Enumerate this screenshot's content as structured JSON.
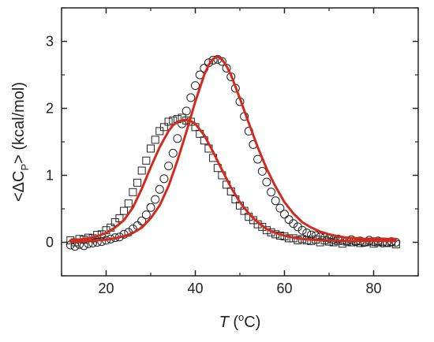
{
  "chart_data": {
    "type": "scatter",
    "title": "",
    "xlabel": {
      "symbol": "T",
      "open": " (",
      "sup": "o",
      "unit": "C)"
    },
    "ylabel": {
      "pre": "<ΔC",
      "sub": "P",
      "post": "> (kcal/mol)"
    },
    "xlim": [
      10,
      90
    ],
    "ylim": [
      -0.5,
      3.5
    ],
    "xticks": [
      20,
      40,
      60,
      80
    ],
    "yticks": [
      0,
      1,
      2,
      3
    ],
    "grid": false,
    "series": [
      {
        "marker": "square",
        "color": "#222222",
        "x": [
          12,
          13,
          14,
          15,
          16,
          17,
          18,
          19,
          20,
          21,
          22,
          23,
          24,
          25,
          26,
          27,
          28,
          29,
          30,
          31,
          32,
          33,
          34,
          35,
          36,
          37,
          38,
          39,
          40,
          41,
          42,
          43,
          44,
          45,
          46,
          47,
          48,
          49,
          50,
          51,
          52,
          53,
          54,
          55,
          56,
          57,
          58,
          59,
          60,
          61,
          62,
          63,
          64,
          65,
          66,
          67,
          68,
          69,
          70,
          71,
          72,
          73,
          74,
          75,
          76,
          77,
          78,
          79,
          80,
          81,
          82,
          83,
          84,
          85
        ],
        "y": [
          0.03,
          0.0,
          0.05,
          0.04,
          0.07,
          0.06,
          0.11,
          0.12,
          0.18,
          0.22,
          0.3,
          0.36,
          0.47,
          0.58,
          0.75,
          0.89,
          1.07,
          1.22,
          1.4,
          1.53,
          1.66,
          1.72,
          1.8,
          1.82,
          1.84,
          1.86,
          1.82,
          1.8,
          1.72,
          1.62,
          1.52,
          1.4,
          1.26,
          1.11,
          1.0,
          0.86,
          0.76,
          0.64,
          0.55,
          0.47,
          0.38,
          0.33,
          0.27,
          0.23,
          0.18,
          0.15,
          0.12,
          0.1,
          0.09,
          0.06,
          0.06,
          0.03,
          0.05,
          0.03,
          0.02,
          0.04,
          0.0,
          0.03,
          0.01,
          0.0,
          0.02,
          -0.02,
          0.01,
          0.0,
          0.02,
          -0.01,
          0.0,
          0.01,
          -0.02,
          0.0,
          0.01,
          -0.01,
          0.0,
          -0.03
        ]
      },
      {
        "marker": "circle",
        "color": "#222222",
        "x": [
          12,
          13,
          14,
          15,
          16,
          17,
          18,
          19,
          20,
          21,
          22,
          23,
          24,
          25,
          26,
          27,
          28,
          29,
          30,
          31,
          32,
          33,
          34,
          35,
          36,
          37,
          38,
          39,
          40,
          41,
          42,
          43,
          44,
          45,
          46,
          47,
          48,
          49,
          50,
          51,
          52,
          53,
          54,
          55,
          56,
          57,
          58,
          59,
          60,
          61,
          62,
          63,
          64,
          65,
          66,
          67,
          68,
          69,
          70,
          71,
          72,
          73,
          74,
          75,
          76,
          77,
          78,
          79,
          80,
          81,
          82,
          83,
          84,
          85
        ],
        "y": [
          -0.04,
          -0.06,
          -0.03,
          -0.05,
          -0.02,
          -0.01,
          0.0,
          0.01,
          0.03,
          0.05,
          0.07,
          0.08,
          0.12,
          0.15,
          0.2,
          0.25,
          0.32,
          0.41,
          0.52,
          0.64,
          0.79,
          0.95,
          1.14,
          1.33,
          1.55,
          1.77,
          1.96,
          2.16,
          2.34,
          2.5,
          2.6,
          2.68,
          2.72,
          2.73,
          2.7,
          2.6,
          2.47,
          2.3,
          2.1,
          1.88,
          1.66,
          1.46,
          1.24,
          1.06,
          0.9,
          0.75,
          0.62,
          0.51,
          0.42,
          0.34,
          0.28,
          0.23,
          0.18,
          0.14,
          0.11,
          0.1,
          0.08,
          0.07,
          0.06,
          0.04,
          0.05,
          0.03,
          0.02,
          0.04,
          0.01,
          0.02,
          0.0,
          0.03,
          0.01,
          0.02,
          -0.01,
          0.0,
          0.01,
          0.0
        ]
      },
      {
        "marker": "line",
        "color": "#d42a1e",
        "x": [
          12,
          14,
          16,
          18,
          20,
          22,
          24,
          26,
          28,
          30,
          32,
          34,
          35,
          36,
          37,
          38,
          39,
          40,
          42,
          44,
          46,
          48,
          50,
          52,
          54,
          56,
          58,
          60,
          62,
          64,
          66,
          68,
          70,
          72,
          74,
          76,
          78,
          80,
          82,
          85
        ],
        "y": [
          0.03,
          0.04,
          0.06,
          0.09,
          0.14,
          0.22,
          0.33,
          0.52,
          0.8,
          1.12,
          1.42,
          1.66,
          1.75,
          1.8,
          1.82,
          1.83,
          1.81,
          1.77,
          1.6,
          1.35,
          1.08,
          0.82,
          0.6,
          0.43,
          0.3,
          0.2,
          0.14,
          0.1,
          0.07,
          0.05,
          0.04,
          0.03,
          0.03,
          0.02,
          0.02,
          0.02,
          0.02,
          0.02,
          0.02,
          0.02
        ]
      },
      {
        "marker": "line",
        "color": "#d42a1e",
        "x": [
          12,
          14,
          16,
          18,
          20,
          22,
          24,
          26,
          28,
          30,
          32,
          34,
          36,
          38,
          40,
          42,
          43,
          44,
          45,
          46,
          47,
          48,
          50,
          52,
          54,
          56,
          58,
          60,
          62,
          64,
          66,
          68,
          70,
          72,
          74,
          76,
          78,
          80,
          82,
          85
        ],
        "y": [
          0.01,
          0.01,
          0.02,
          0.03,
          0.04,
          0.06,
          0.09,
          0.14,
          0.22,
          0.36,
          0.55,
          0.84,
          1.22,
          1.65,
          2.1,
          2.5,
          2.65,
          2.74,
          2.77,
          2.73,
          2.63,
          2.5,
          2.15,
          1.78,
          1.42,
          1.1,
          0.83,
          0.6,
          0.43,
          0.3,
          0.22,
          0.16,
          0.12,
          0.09,
          0.07,
          0.06,
          0.05,
          0.05,
          0.05,
          0.05
        ]
      }
    ]
  }
}
